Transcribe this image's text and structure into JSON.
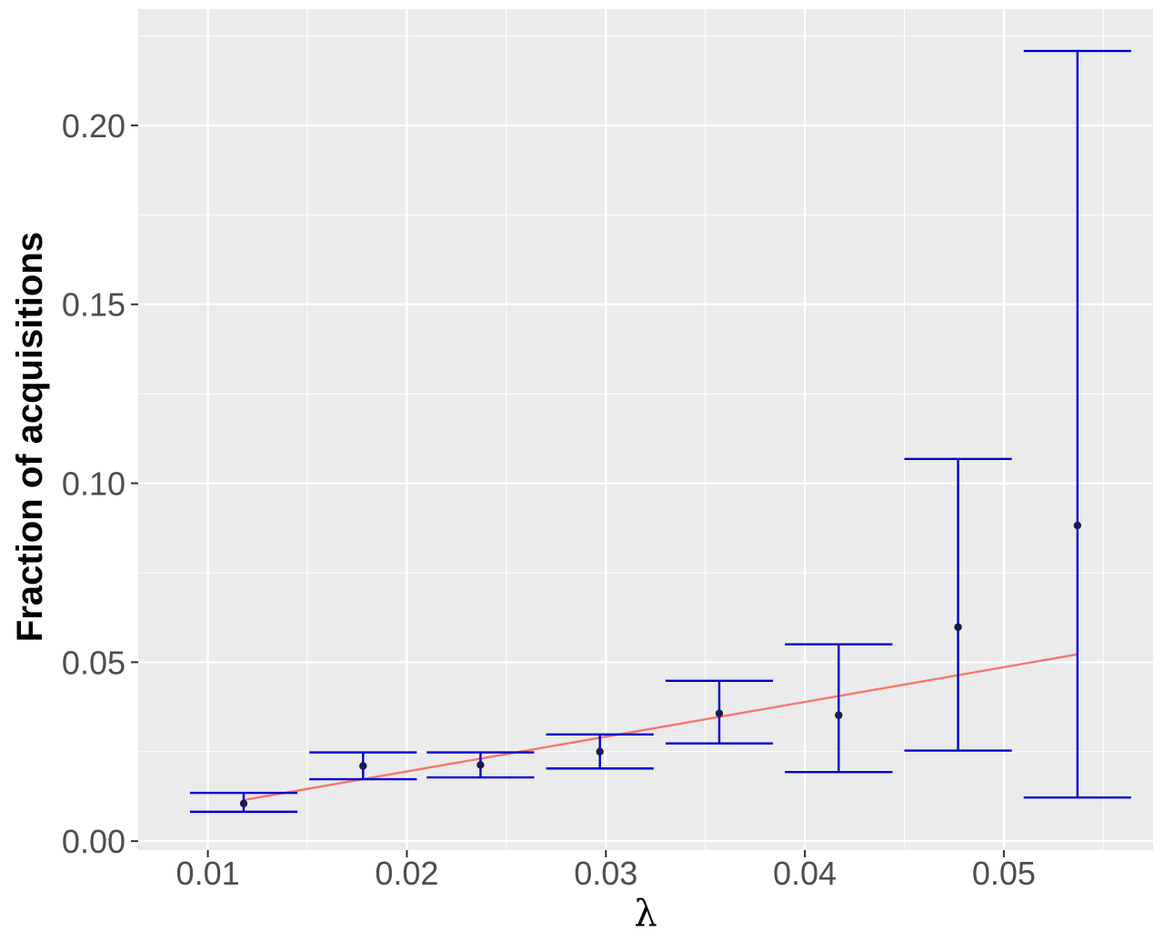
{
  "chart_data": {
    "type": "scatter",
    "title": "",
    "xlabel": "λ",
    "ylabel": "Fraction of acquisitions",
    "xlim": [
      0.0065,
      0.0575
    ],
    "ylim": [
      -0.0025,
      0.2325
    ],
    "x_ticks": [
      0.01,
      0.02,
      0.03,
      0.04,
      0.05
    ],
    "x_tick_labels": [
      "0.01",
      "0.02",
      "0.03",
      "0.04",
      "0.05"
    ],
    "y_ticks": [
      0.0,
      0.05,
      0.1,
      0.15,
      0.2
    ],
    "y_tick_labels": [
      "0.00",
      "0.05",
      "0.10",
      "0.15",
      "0.20"
    ],
    "grid": true,
    "background": "#ebebeb",
    "colors": {
      "errorbar": "#0000cd",
      "point": "#1a1a4d",
      "fit_line": "#f8766d",
      "grid": "#ffffff"
    },
    "points": [
      {
        "x": 0.0118,
        "y": 0.0105,
        "ymin": 0.0082,
        "ymax": 0.0135
      },
      {
        "x": 0.0178,
        "y": 0.021,
        "ymin": 0.0173,
        "ymax": 0.0248
      },
      {
        "x": 0.0237,
        "y": 0.0213,
        "ymin": 0.0178,
        "ymax": 0.0248
      },
      {
        "x": 0.0297,
        "y": 0.025,
        "ymin": 0.0203,
        "ymax": 0.0298
      },
      {
        "x": 0.0357,
        "y": 0.0357,
        "ymin": 0.0273,
        "ymax": 0.0448
      },
      {
        "x": 0.0417,
        "y": 0.0352,
        "ymin": 0.0193,
        "ymax": 0.055
      },
      {
        "x": 0.0477,
        "y": 0.0598,
        "ymin": 0.0253,
        "ymax": 0.1068
      },
      {
        "x": 0.0537,
        "y": 0.0882,
        "ymin": 0.0122,
        "ymax": 0.2208
      }
    ],
    "errorbar_halfwidth": 0.0027,
    "fit_line": {
      "x": [
        0.0118,
        0.0537
      ],
      "y": [
        0.0115,
        0.0522
      ]
    }
  }
}
